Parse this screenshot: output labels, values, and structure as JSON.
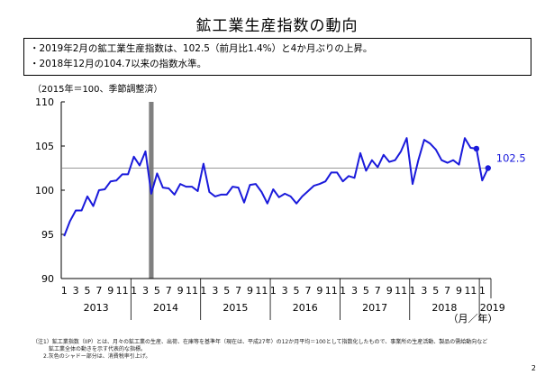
{
  "page": {
    "title": "鉱工業生産指数の動向",
    "summary": [
      "・2019年2月の鉱工業生産指数は、102.5（前月比1.4%）と4か月ぶりの上昇。",
      "・2018年12月の104.7以来の指数水準。"
    ],
    "unit_note": "（2015年＝100、季節調整済）",
    "notes": [
      "（注1）鉱工業指数（IIP）とは、月々の鉱工業の生産、出荷、在庫等を基準年（現在は、平成27年）の12か月平均＝100として指数化したもので、事業所の生産活動、製品の需給動向など",
      "　　　鉱工業全体の動きを示す代表的な指標。",
      "　　2.灰色のシャドー部分は、消費税率引上げ。"
    ],
    "page_number": "2"
  },
  "chart_data": {
    "type": "line",
    "ylim": [
      90,
      110
    ],
    "yticks": [
      90,
      95,
      100,
      105,
      110
    ],
    "month_tick_labels": [
      "1",
      "3",
      "5",
      "7",
      "9",
      "11"
    ],
    "year_labels": [
      "2013",
      "2014",
      "2015",
      "2016",
      "2017",
      "2018",
      "2019"
    ],
    "x_unit_label": "（月／年）",
    "x": [
      "2013-01",
      "2013-02",
      "2013-03",
      "2013-04",
      "2013-05",
      "2013-06",
      "2013-07",
      "2013-08",
      "2013-09",
      "2013-10",
      "2013-11",
      "2013-12",
      "2014-01",
      "2014-02",
      "2014-03",
      "2014-04",
      "2014-05",
      "2014-06",
      "2014-07",
      "2014-08",
      "2014-09",
      "2014-10",
      "2014-11",
      "2014-12",
      "2015-01",
      "2015-02",
      "2015-03",
      "2015-04",
      "2015-05",
      "2015-06",
      "2015-07",
      "2015-08",
      "2015-09",
      "2015-10",
      "2015-11",
      "2015-12",
      "2016-01",
      "2016-02",
      "2016-03",
      "2016-04",
      "2016-05",
      "2016-06",
      "2016-07",
      "2016-08",
      "2016-09",
      "2016-10",
      "2016-11",
      "2016-12",
      "2017-01",
      "2017-02",
      "2017-03",
      "2017-04",
      "2017-05",
      "2017-06",
      "2017-07",
      "2017-08",
      "2017-09",
      "2017-10",
      "2017-11",
      "2017-12",
      "2018-01",
      "2018-02",
      "2018-03",
      "2018-04",
      "2018-05",
      "2018-06",
      "2018-07",
      "2018-08",
      "2018-09",
      "2018-10",
      "2018-11",
      "2018-12",
      "2019-01",
      "2019-02"
    ],
    "series": [
      {
        "color": "#1a1adb",
        "values": [
          94.8,
          96.5,
          97.7,
          97.7,
          99.3,
          98.2,
          100.0,
          100.1,
          101.0,
          101.1,
          101.8,
          101.8,
          103.8,
          102.8,
          104.4,
          99.6,
          101.9,
          100.3,
          100.2,
          99.5,
          100.7,
          100.4,
          100.4,
          99.9,
          103.0,
          99.8,
          99.3,
          99.5,
          99.5,
          100.4,
          100.3,
          98.6,
          100.6,
          100.7,
          99.8,
          98.5,
          100.1,
          99.2,
          99.6,
          99.3,
          98.5,
          99.3,
          99.9,
          100.5,
          100.7,
          101.0,
          102.0,
          102.0,
          101.0,
          101.6,
          101.4,
          104.2,
          102.2,
          103.4,
          102.6,
          104.0,
          103.2,
          103.4,
          104.4,
          105.9,
          100.7,
          103.4,
          105.7,
          105.3,
          104.6,
          103.4,
          103.1,
          103.4,
          102.9,
          105.9,
          104.8,
          104.7,
          101.1,
          102.5
        ]
      }
    ],
    "highlight_points": [
      {
        "x": "2018-12",
        "value": 104.7
      },
      {
        "x": "2019-02",
        "value": 102.5
      }
    ],
    "latest_label": "102.5",
    "reference_line": 102.5,
    "shaded_period": {
      "x": "2014-04",
      "color": "#808080"
    }
  }
}
